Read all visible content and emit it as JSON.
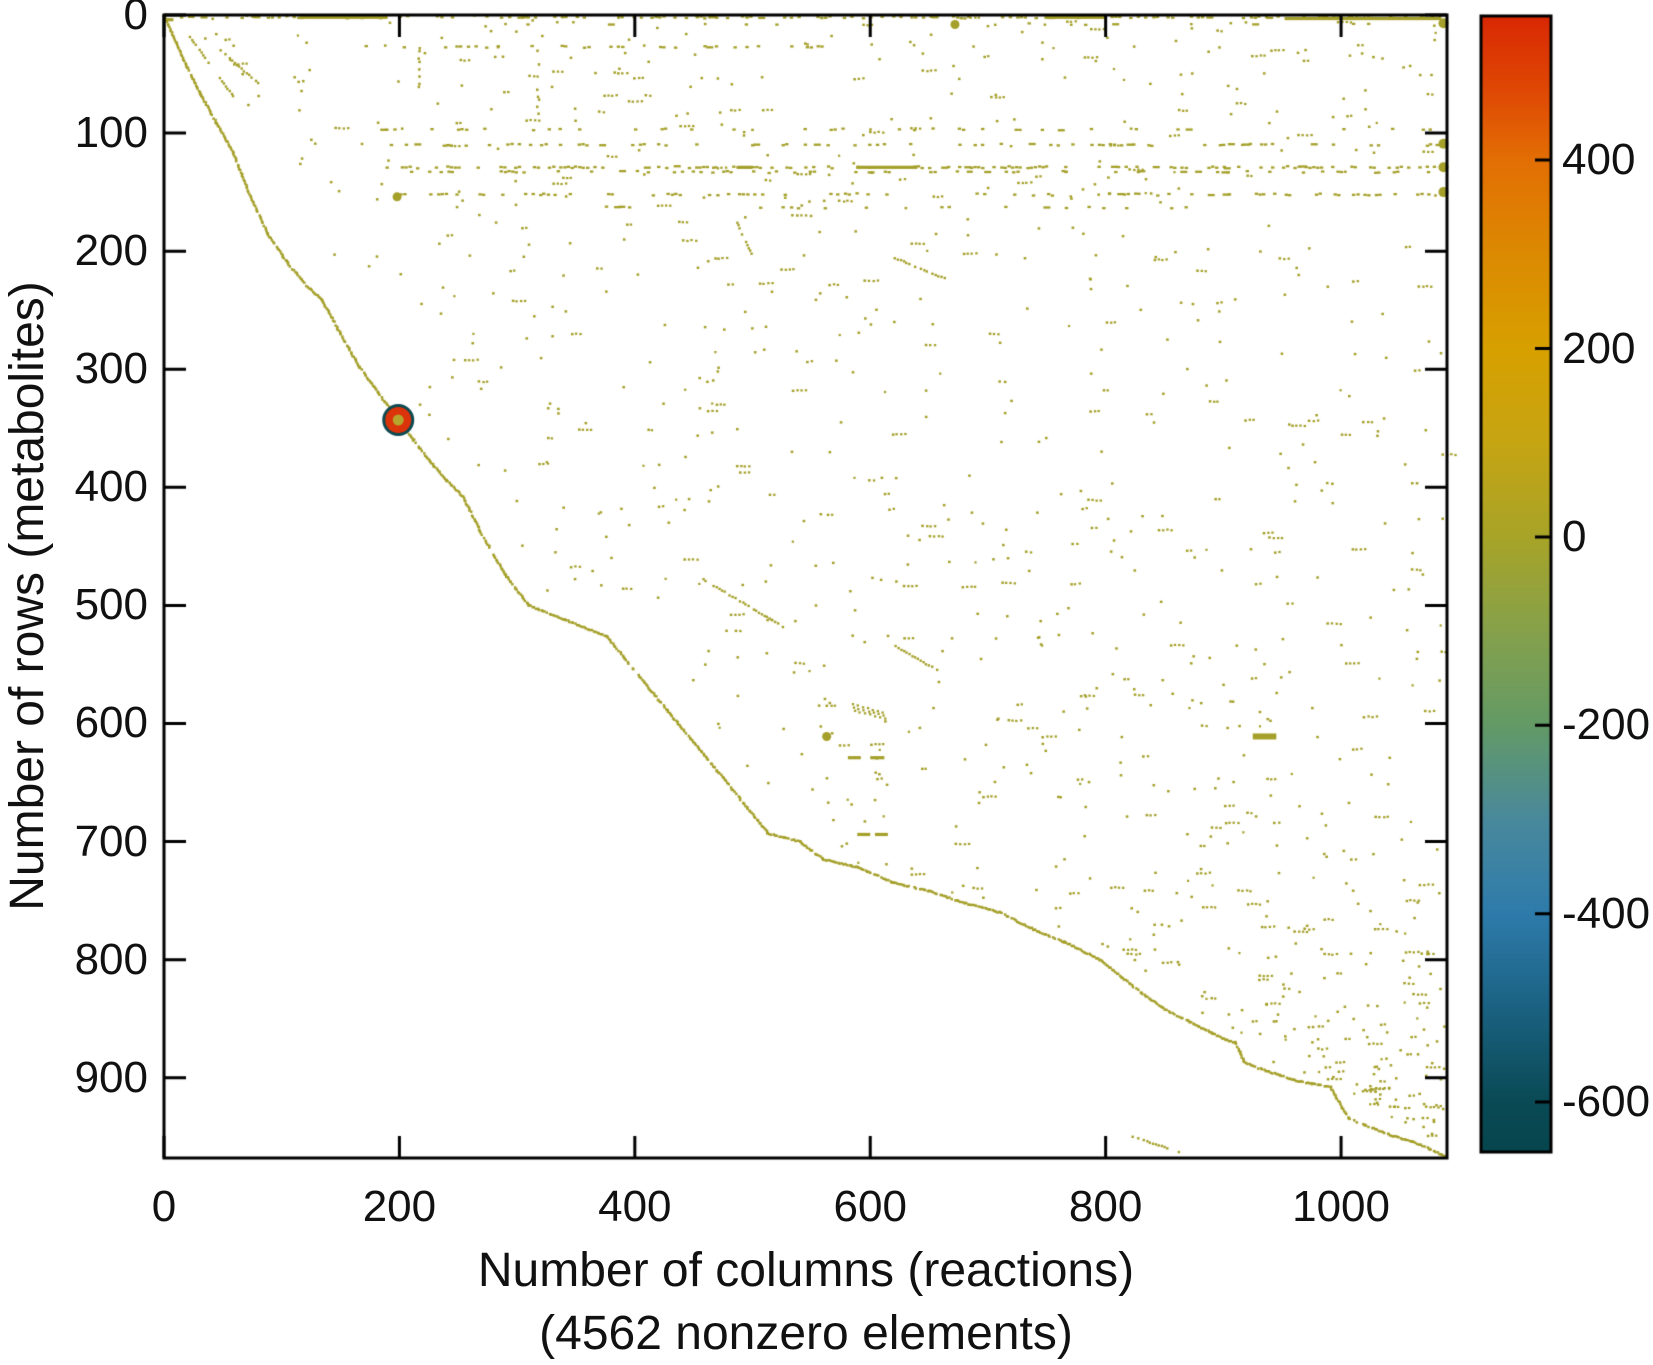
{
  "figure": {
    "background": "#ffffff",
    "axis_color": "#000000",
    "text_color": "#111111"
  },
  "chart_data": {
    "type": "scatter",
    "variant": "sparsity-pattern-spy-plot",
    "title": "",
    "xlabel": "Number of columns (reactions)",
    "xlabel_line2": "(4562 nonzero elements)",
    "ylabel": "Number of rows (metabolites)",
    "nonzero_elements": 4562,
    "xlim": [
      0,
      1090
    ],
    "ylim": [
      0,
      968
    ],
    "y_axis_reversed": true,
    "grid": false,
    "legend": null,
    "x_tick_labels": [
      "0",
      "200",
      "400",
      "600",
      "800",
      "1000"
    ],
    "x_tick_values": [
      0,
      200,
      400,
      600,
      800,
      1000
    ],
    "y_tick_labels": [
      "0",
      "100",
      "200",
      "300",
      "400",
      "500",
      "600",
      "700",
      "800",
      "900"
    ],
    "y_tick_values": [
      0,
      100,
      200,
      300,
      400,
      500,
      600,
      700,
      800,
      900
    ],
    "dot_color": "#a5a02a",
    "colorbar": {
      "position": "right",
      "vmin": -653,
      "vmax": 553,
      "tick_labels": [
        "400",
        "200",
        "0",
        "-200",
        "-400",
        "-600"
      ],
      "tick_values": [
        400,
        200,
        0,
        -200,
        -400,
        -600
      ],
      "gradient_stops": [
        {
          "value": 553,
          "color": "#d92803"
        },
        {
          "value": 470,
          "color": "#df4a04"
        },
        {
          "value": 400,
          "color": "#e36f04"
        },
        {
          "value": 300,
          "color": "#dc8a02"
        },
        {
          "value": 200,
          "color": "#d7a000"
        },
        {
          "value": 100,
          "color": "#c6a513"
        },
        {
          "value": 0,
          "color": "#a8a428"
        },
        {
          "value": -100,
          "color": "#86a14b"
        },
        {
          "value": -200,
          "color": "#639a66"
        },
        {
          "value": -300,
          "color": "#49899c"
        },
        {
          "value": -400,
          "color": "#2e7bab"
        },
        {
          "value": -500,
          "color": "#1b6282"
        },
        {
          "value": -600,
          "color": "#0a4a55"
        },
        {
          "value": -653,
          "color": "#07464e"
        }
      ]
    },
    "highlight_marker": {
      "x": 199,
      "y": 343,
      "rings": [
        {
          "r": 16,
          "color": "#0d4a52"
        },
        {
          "r": 13,
          "color": "#db330a"
        },
        {
          "r": 5.5,
          "color": "#b6a42c"
        }
      ]
    },
    "diagonal_waypoints": [
      [
        0,
        0
      ],
      [
        8,
        18
      ],
      [
        20,
        45
      ],
      [
        31,
        67
      ],
      [
        45,
        92
      ],
      [
        58,
        115
      ],
      [
        72,
        150
      ],
      [
        88,
        185
      ],
      [
        105,
        210
      ],
      [
        120,
        228
      ],
      [
        134,
        241
      ],
      [
        150,
        270
      ],
      [
        166,
        298
      ],
      [
        182,
        320
      ],
      [
        199,
        343
      ],
      [
        212,
        360
      ],
      [
        226,
        378
      ],
      [
        240,
        394
      ],
      [
        254,
        408
      ],
      [
        270,
        440
      ],
      [
        290,
        474
      ],
      [
        310,
        500
      ],
      [
        340,
        512
      ],
      [
        376,
        526
      ],
      [
        420,
        580
      ],
      [
        470,
        640
      ],
      [
        513,
        693
      ],
      [
        540,
        700
      ],
      [
        560,
        715
      ],
      [
        590,
        722
      ],
      [
        620,
        735
      ],
      [
        650,
        742
      ],
      [
        680,
        752
      ],
      [
        710,
        760
      ],
      [
        740,
        775
      ],
      [
        765,
        785
      ],
      [
        795,
        800
      ],
      [
        830,
        828
      ],
      [
        852,
        843
      ],
      [
        870,
        852
      ],
      [
        890,
        862
      ],
      [
        902,
        868
      ],
      [
        910,
        870
      ],
      [
        918,
        887
      ],
      [
        930,
        892
      ],
      [
        948,
        898
      ],
      [
        960,
        902
      ],
      [
        975,
        905
      ],
      [
        991,
        908
      ],
      [
        1006,
        934
      ],
      [
        1020,
        940
      ],
      [
        1040,
        948
      ],
      [
        1060,
        954
      ],
      [
        1075,
        960
      ],
      [
        1090,
        968
      ]
    ],
    "pattern": {
      "seed": 1337,
      "sparse_count": 950,
      "extra_count": 70,
      "dense_rows": [
        {
          "row": 2,
          "x0": 15,
          "x1": 1090,
          "density": 0.4
        },
        {
          "row": 8,
          "x0": 300,
          "x1": 1090,
          "density": 0.05
        },
        {
          "row": 27,
          "x0": 140,
          "x1": 560,
          "density": 0.18
        },
        {
          "row": 97,
          "x0": 180,
          "x1": 1090,
          "density": 0.14
        },
        {
          "row": 110,
          "x0": 190,
          "x1": 1090,
          "density": 0.22
        },
        {
          "row": 129,
          "x0": 190,
          "x1": 1090,
          "density": 0.4
        },
        {
          "row": 133,
          "x0": 210,
          "x1": 1090,
          "density": 0.25
        },
        {
          "row": 152,
          "x0": 195,
          "x1": 1090,
          "density": 0.28
        },
        {
          "row": 163,
          "x0": 360,
          "x1": 900,
          "density": 0.12
        }
      ],
      "solid_row_segments": [
        {
          "row": 2,
          "x0": 115,
          "x1": 190
        },
        {
          "row": 2,
          "x0": 748,
          "x1": 800
        },
        {
          "row": 3,
          "x0": 952,
          "x1": 1085
        },
        {
          "row": 4,
          "x0": 0,
          "x1": 8
        },
        {
          "row": 129,
          "x0": 487,
          "x1": 500
        },
        {
          "row": 129,
          "x0": 588,
          "x1": 640
        },
        {
          "row": 629,
          "x0": 581,
          "x1": 592
        },
        {
          "row": 629,
          "x0": 600,
          "x1": 612
        },
        {
          "row": 694,
          "x0": 589,
          "x1": 600
        },
        {
          "row": 694,
          "x0": 604,
          "x1": 615
        }
      ],
      "column_segments": [
        {
          "col": 318,
          "y0": 30,
          "y1": 95,
          "density": 0.5
        },
        {
          "col": 217,
          "y0": 28,
          "y1": 62,
          "density": 0.35
        }
      ],
      "streaks": [
        [
          22,
          19,
          59,
          69
        ],
        [
          48,
          30,
          80,
          58
        ],
        [
          487,
          176,
          499,
          202
        ],
        [
          621,
          206,
          663,
          223
        ],
        [
          458,
          478,
          526,
          518
        ],
        [
          617,
          532,
          657,
          555
        ],
        [
          823,
          950,
          862,
          963
        ]
      ],
      "hatch_cluster": {
        "x": 585,
        "y": 584,
        "count": 7,
        "dx": 4.3,
        "dy": 1.1,
        "ticks": 3,
        "tick_dy": 2.6
      },
      "thick_dashes": [
        {
          "row": 611,
          "x0": 925,
          "x1": 945,
          "h": 6
        }
      ],
      "large_dots": [
        [
          672,
          8
        ],
        [
          198,
          154
        ],
        [
          563,
          611
        ]
      ],
      "right_edge_dots": {
        "x": 1087,
        "rows": [
          7,
          109,
          129,
          150
        ]
      }
    }
  }
}
